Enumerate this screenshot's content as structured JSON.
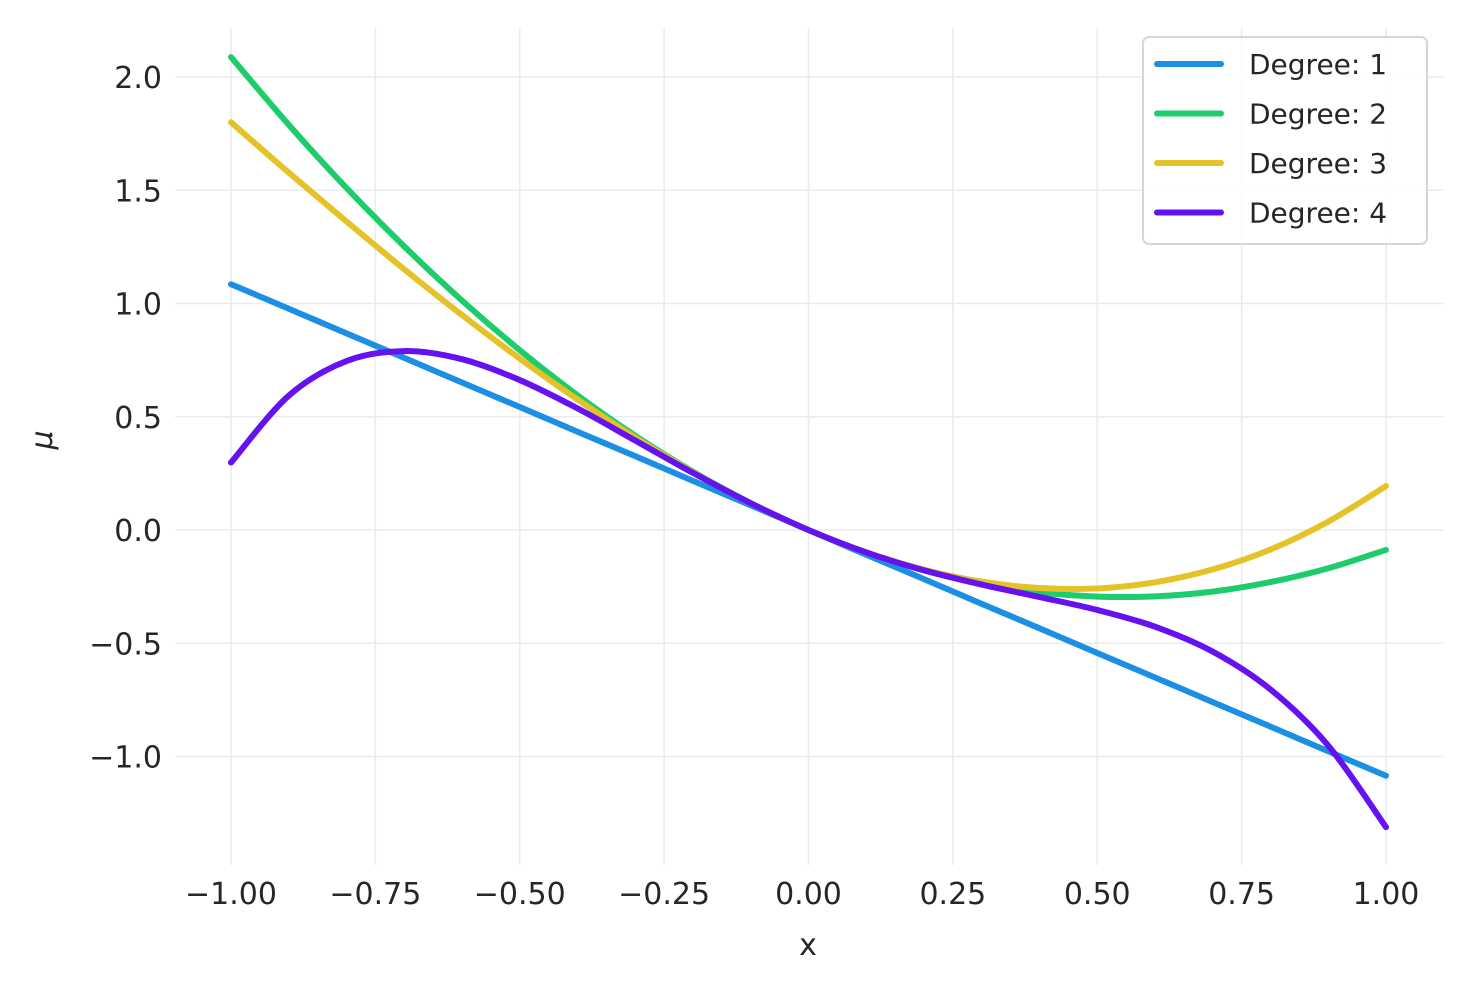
{
  "chart_data": {
    "type": "line",
    "title": "",
    "xlabel": "x",
    "ylabel": "μ",
    "xlim": [
      -1.1,
      1.1
    ],
    "ylim": [
      -1.48,
      2.22
    ],
    "grid": true,
    "legend_placement": "top-right",
    "xticks": [
      -1.0,
      -0.75,
      -0.5,
      -0.25,
      0.0,
      0.25,
      0.5,
      0.75,
      1.0
    ],
    "xtick_labels": [
      "−1.00",
      "−0.75",
      "−0.50",
      "−0.25",
      "0.00",
      "0.25",
      "0.50",
      "0.75",
      "1.00"
    ],
    "yticks": [
      -1.0,
      -0.5,
      0.0,
      0.5,
      1.0,
      1.5,
      2.0
    ],
    "ytick_labels": [
      "−1.0",
      "−0.5",
      "0.0",
      "0.5",
      "1.0",
      "1.5",
      "2.0"
    ],
    "x": [
      -1.0,
      -0.9,
      -0.8,
      -0.7,
      -0.6,
      -0.5,
      -0.4,
      -0.3,
      -0.2,
      -0.1,
      0.0,
      0.1,
      0.2,
      0.3,
      0.4,
      0.5,
      0.6,
      0.7,
      0.8,
      0.9,
      1.0
    ],
    "series": [
      {
        "name": "Degree: 1",
        "color": "#1b8fe3",
        "values": [
          1.085,
          0.977,
          0.868,
          0.76,
          0.651,
          0.543,
          0.434,
          0.326,
          0.217,
          0.109,
          0,
          -0.109,
          -0.217,
          -0.326,
          -0.434,
          -0.543,
          -0.651,
          -0.76,
          -0.868,
          -0.977,
          -1.085
        ]
      },
      {
        "name": "Degree: 2",
        "color": "#1fcc6c",
        "values": [
          2.088,
          1.789,
          1.51,
          1.252,
          1.013,
          0.794,
          0.595,
          0.416,
          0.258,
          0.119,
          0,
          -0.099,
          -0.178,
          -0.236,
          -0.275,
          -0.294,
          -0.293,
          -0.272,
          -0.23,
          -0.169,
          -0.088
        ]
      },
      {
        "name": "Degree: 3",
        "color": "#e6c229",
        "values": [
          1.8,
          1.578,
          1.362,
          1.151,
          0.949,
          0.757,
          0.576,
          0.408,
          0.255,
          0.118,
          0,
          -0.098,
          -0.175,
          -0.228,
          -0.256,
          -0.258,
          -0.231,
          -0.174,
          -0.086,
          0.037,
          0.194
        ]
      },
      {
        "name": "Degree: 4",
        "color": "#6611f0",
        "values": [
          0.298,
          0.593,
          0.746,
          0.79,
          0.754,
          0.662,
          0.537,
          0.395,
          0.252,
          0.118,
          0,
          -0.099,
          -0.178,
          -0.241,
          -0.296,
          -0.353,
          -0.427,
          -0.537,
          -0.704,
          -0.952,
          -1.312
        ]
      }
    ]
  }
}
